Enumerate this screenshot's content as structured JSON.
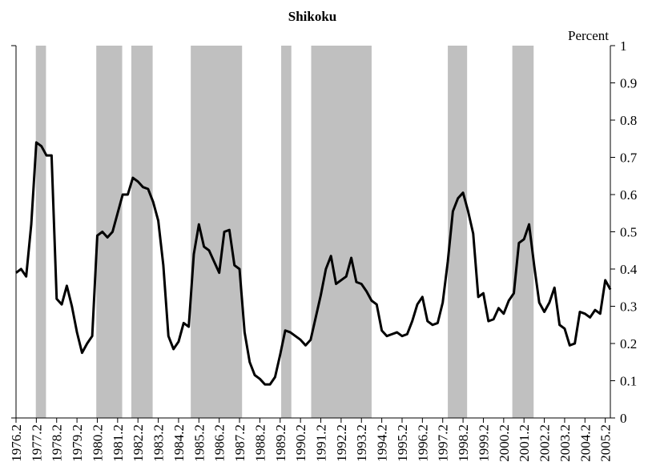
{
  "chart_data": {
    "type": "line",
    "title": "Shikoku",
    "y_label": "Percent",
    "categories": [
      "1976.2",
      null,
      null,
      null,
      "1977.2",
      null,
      null,
      null,
      "1978.2",
      null,
      null,
      null,
      "1979.2",
      null,
      null,
      null,
      "1980.2",
      null,
      null,
      null,
      "1981.2",
      null,
      null,
      null,
      "1982.2",
      null,
      null,
      null,
      "1983.2",
      null,
      null,
      null,
      "1984.2",
      null,
      null,
      null,
      "1985.2",
      null,
      null,
      null,
      "1986.2",
      null,
      null,
      null,
      "1987.2",
      null,
      null,
      null,
      "1988.2",
      null,
      null,
      null,
      "1989.2",
      null,
      null,
      null,
      "1990.2",
      null,
      null,
      null,
      "1991.2",
      null,
      null,
      null,
      "1992.2",
      null,
      null,
      null,
      "1993.2",
      null,
      null,
      null,
      "1994.2",
      null,
      null,
      null,
      "1995.2",
      null,
      null,
      null,
      "1996.2",
      null,
      null,
      null,
      "1997.2",
      null,
      null,
      null,
      "1998.2",
      null,
      null,
      null,
      "1999.2",
      null,
      null,
      null,
      "2000.2",
      null,
      null,
      null,
      "2001.2",
      null,
      null,
      null,
      "2002.2",
      null,
      null,
      null,
      "2003.2",
      null,
      null,
      null,
      "2004.2",
      null,
      null,
      null,
      "2005.2",
      null
    ],
    "values": [
      0.39,
      0.4,
      0.38,
      0.52,
      0.74,
      0.73,
      0.705,
      0.705,
      0.32,
      0.305,
      0.355,
      0.3,
      0.23,
      0.175,
      0.2,
      0.22,
      0.49,
      0.5,
      0.485,
      0.5,
      0.55,
      0.6,
      0.6,
      0.645,
      0.635,
      0.62,
      0.615,
      0.58,
      0.53,
      0.41,
      0.22,
      0.185,
      0.205,
      0.255,
      0.245,
      0.44,
      0.52,
      0.46,
      0.45,
      0.42,
      0.39,
      0.5,
      0.505,
      0.41,
      0.4,
      0.23,
      0.15,
      0.115,
      0.105,
      0.09,
      0.09,
      0.11,
      0.17,
      0.235,
      0.23,
      0.22,
      0.21,
      0.195,
      0.21,
      0.27,
      0.33,
      0.4,
      0.435,
      0.36,
      0.37,
      0.38,
      0.43,
      0.365,
      0.36,
      0.34,
      0.315,
      0.305,
      0.235,
      0.22,
      0.225,
      0.23,
      0.22,
      0.225,
      0.26,
      0.305,
      0.325,
      0.26,
      0.25,
      0.255,
      0.31,
      0.42,
      0.555,
      0.59,
      0.605,
      0.555,
      0.495,
      0.325,
      0.335,
      0.26,
      0.265,
      0.295,
      0.28,
      0.315,
      0.335,
      0.47,
      0.48,
      0.52,
      0.41,
      0.31,
      0.285,
      0.31,
      0.35,
      0.25,
      0.24,
      0.195,
      0.2,
      0.285,
      0.28,
      0.27,
      0.29,
      0.28,
      0.37,
      0.345
    ],
    "color": "#000000",
    "shade_color": "#c0c0c0",
    "shaded": [
      [
        3.9,
        5.9
      ],
      [
        15.8,
        20.9
      ],
      [
        22.7,
        26.9
      ],
      [
        34.4,
        44.5
      ],
      [
        52.2,
        54.2
      ],
      [
        58.1,
        70
      ],
      [
        85,
        88.8
      ],
      [
        97.7,
        101.9
      ]
    ],
    "ylim": [
      0,
      1
    ],
    "yticks": [
      0,
      0.1,
      0.2,
      0.3,
      0.4,
      0.5,
      0.6,
      0.7,
      0.8,
      0.9,
      1
    ]
  }
}
